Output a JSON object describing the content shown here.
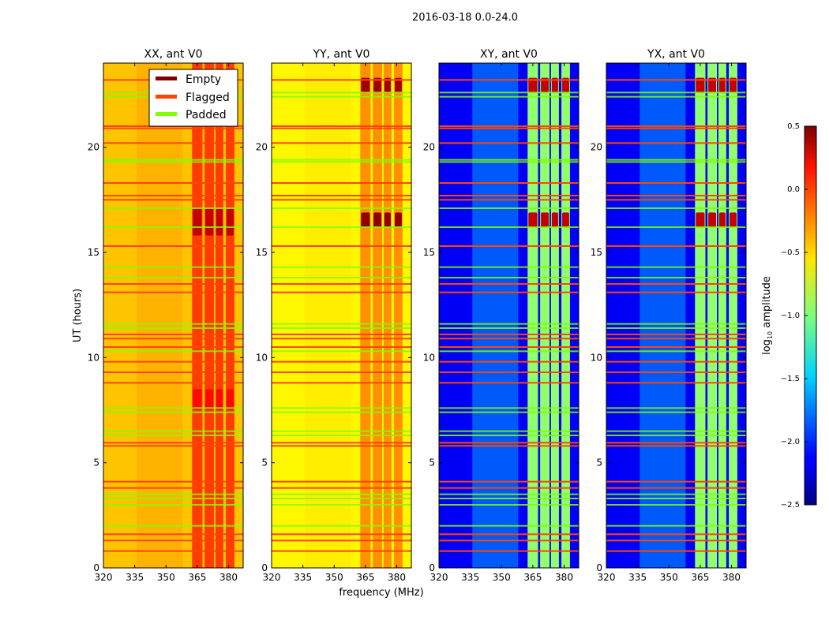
{
  "chart_data": {
    "type": "heatmap",
    "title": "2016-03-18 0.0-24.0",
    "xlabel": "frequency (MHz)",
    "ylabel": "UT (hours)",
    "xlim": [
      320,
      387
    ],
    "ylim": [
      0,
      24
    ],
    "xticks": [
      "320",
      "335",
      "350",
      "365",
      "380"
    ],
    "yticks": [
      "0",
      "5",
      "10",
      "15",
      "20"
    ],
    "xtick_values": [
      320,
      335,
      350,
      365,
      380
    ],
    "ytick_values": [
      0,
      5,
      10,
      15,
      20
    ],
    "colorbar": {
      "label": "log10 amplitude",
      "label_main": "log",
      "label_sub": "10",
      "label_rest": " amplitude",
      "range": [
        -2.5,
        0.5
      ],
      "ticks": [
        "0.5",
        "0.0",
        "−0.5",
        "−1.0",
        "−1.5",
        "−2.0",
        "−2.5"
      ],
      "tick_values": [
        0.5,
        0.0,
        -0.5,
        -1.0,
        -1.5,
        -2.0,
        -2.5
      ],
      "colormap": "jet"
    },
    "legend": {
      "placement": "upper-right of first panel",
      "entries": [
        {
          "label": "Empty",
          "color": "#800000"
        },
        {
          "label": "Flagged",
          "color": "#ff4500"
        },
        {
          "label": "Padded",
          "color": "#7fff00"
        }
      ]
    },
    "bands_mhz": [
      [
        362.5,
        367.5
      ],
      [
        368.5,
        373
      ],
      [
        373.7,
        377.5
      ],
      [
        378.7,
        382.8
      ]
    ],
    "flagged_ut": [
      0.8,
      1.3,
      1.6,
      3.8,
      4.1,
      5.8,
      5.95,
      8.8,
      9.3,
      9.8,
      10.5,
      10.9,
      11.1,
      13.1,
      13.5,
      15.3,
      17.5,
      17.7,
      18.3,
      20.2,
      20.9,
      21.0,
      23.2
    ],
    "padded_ut": [
      2.0,
      3.0,
      3.3,
      3.5,
      6.3,
      6.5,
      7.4,
      7.6,
      10.3,
      11.4,
      11.6,
      13.8,
      14.3,
      16.2,
      17.1,
      19.3,
      19.4,
      22.4,
      22.6
    ],
    "panels": [
      {
        "title": "XX, ant V0",
        "base": -0.45,
        "band": -0.05,
        "mid": -0.35,
        "hot": [
          [
            15.8,
            17.1,
            0.3
          ],
          [
            7.5,
            8.5,
            0.1
          ]
        ]
      },
      {
        "title": "YY, ant V0",
        "base": -0.6,
        "band": -0.3,
        "mid": -0.55,
        "hot": [
          [
            16.2,
            16.9,
            0.45
          ],
          [
            22.6,
            23.3,
            0.4
          ]
        ]
      },
      {
        "title": "XY, ant V0",
        "base": -2.15,
        "band": -0.95,
        "mid": -1.6,
        "hot": [
          [
            16.2,
            16.9,
            0.3
          ],
          [
            22.6,
            23.3,
            0.3
          ]
        ]
      },
      {
        "title": "YX, ant V0",
        "base": -2.15,
        "band": -0.95,
        "mid": -1.6,
        "hot": [
          [
            16.2,
            16.9,
            0.3
          ],
          [
            22.6,
            23.3,
            0.3
          ]
        ]
      }
    ]
  }
}
